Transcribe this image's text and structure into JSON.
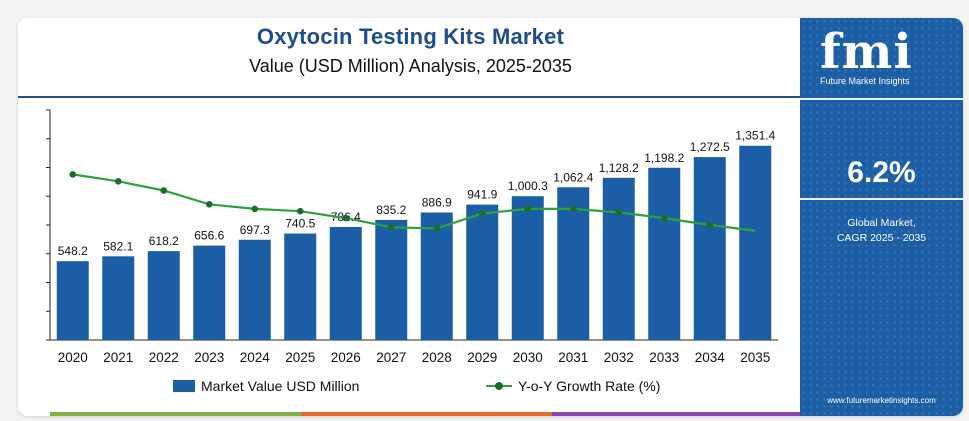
{
  "header": {
    "title": "Oxytocin Testing Kits Market",
    "subtitle": "Value (USD Million) Analysis, 2025-2035"
  },
  "legend": {
    "bar_label": "Market Value USD Million",
    "line_label": "Y-o-Y Growth Rate (%)"
  },
  "sidebar": {
    "logo_text": "fmi",
    "logo_name": "Future Market Insights",
    "cagr_value": "6.2%",
    "cagr_label_line1": "Global Market,",
    "cagr_label_line2": "CAGR 2025 - 2035",
    "website": "www.futuremarketinsights.com"
  },
  "colors": {
    "bar": "#1b5ea6",
    "line": "#2aa33a",
    "marker": "#1f6b2a",
    "title": "#1f4e8c",
    "sidebar": "#1b5ea6",
    "strip": [
      "#7cb342",
      "#e8692e",
      "#8e44ad"
    ]
  },
  "chart_data": {
    "type": "bar",
    "title": "Oxytocin Testing Kits Market",
    "subtitle": "Value (USD Million) Analysis, 2025-2035",
    "categories": [
      "2020",
      "2021",
      "2022",
      "2023",
      "2024",
      "2025",
      "2026",
      "2027",
      "2028",
      "2029",
      "2030",
      "2031",
      "2032",
      "2033",
      "2034",
      "2035"
    ],
    "series": [
      {
        "name": "Market Value USD Million",
        "type": "bar",
        "values": [
          548.2,
          582.1,
          618.2,
          656.6,
          697.3,
          740.5,
          786.4,
          835.2,
          886.9,
          941.9,
          1000.3,
          1062.4,
          1128.2,
          1198.2,
          1272.5,
          1351.4
        ],
        "labels": [
          "548.2",
          "582.1",
          "618.2",
          "656.6",
          "697.3",
          "740.5",
          "786.4",
          "835.2",
          "886.9",
          "941.9",
          "1,000.3",
          "1,062.4",
          "1,128.2",
          "1,198.2",
          "1,272.5",
          "1,351.4"
        ]
      },
      {
        "name": "Y-o-Y Growth Rate (%)",
        "type": "line",
        "values": [
          7.2,
          6.9,
          6.5,
          5.9,
          5.7,
          5.6,
          5.3,
          4.9,
          4.85,
          5.5,
          5.7,
          5.7,
          5.55,
          5.3,
          5.0,
          4.75
        ]
      }
    ],
    "ylim": [
      0,
      1600
    ],
    "y2lim": [
      0,
      10
    ],
    "grid": false,
    "legend": "bottom"
  }
}
